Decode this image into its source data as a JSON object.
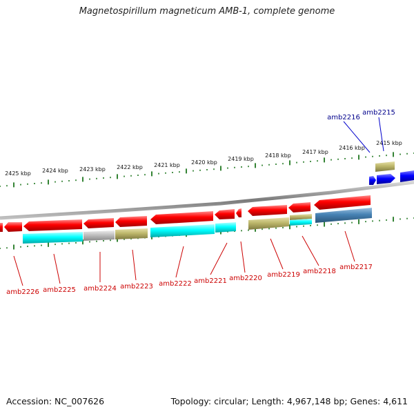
{
  "title": "Magnetospirillum magneticum AMB-1, complete genome",
  "footer": {
    "accession": "Accession: NC_007626",
    "summary": "Topology: circular; Length: 4,967,148 bp; Genes: 4,611"
  },
  "colors": {
    "cds_red": "#ff0000",
    "cyan": "#00ffff",
    "olive": "#bdb76b",
    "gray": "#bebebe",
    "steel": "#4682b4",
    "blue": "#0000ff",
    "backbone": "#808080",
    "tick": "#006400",
    "label_red": "#cc0000",
    "label_blue": "#00008b"
  },
  "tick_labels": [
    "2425 kbp",
    "2424 kbp",
    "2423 kbp",
    "2422 kbp",
    "2421 kbp",
    "2420 kbp",
    "2419 kbp",
    "2418 kbp",
    "2417 kbp",
    "2416 kbp",
    "2415 kbp"
  ],
  "labels_top": [
    "amb2216",
    "amb2215"
  ],
  "labels_bottom": [
    "amb2226",
    "amb2225",
    "amb2224",
    "amb2223",
    "amb2222",
    "amb2221",
    "amb2220",
    "amb2219",
    "amb2218",
    "amb2217"
  ]
}
